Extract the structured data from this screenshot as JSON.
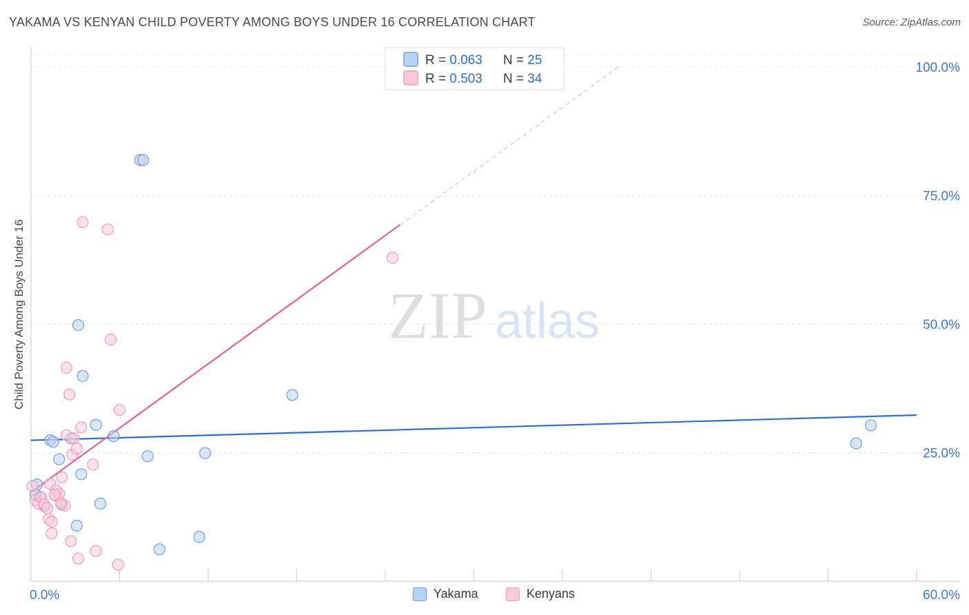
{
  "chart_data": {
    "type": "scatter",
    "title": "YAKAMA VS KENYAN CHILD POVERTY AMONG BOYS UNDER 16 CORRELATION CHART",
    "source": "Source: ZipAtlas.com",
    "xlabel": "",
    "ylabel": "Child Poverty Among Boys Under 16",
    "xlim": [
      0,
      60
    ],
    "ylim": [
      0,
      100
    ],
    "x_tick_labels": [
      "0.0%",
      "60.0%"
    ],
    "y_tick_labels": [
      "25.0%",
      "50.0%",
      "75.0%",
      "100.0%"
    ],
    "y_tick_values": [
      25,
      50,
      75,
      100
    ],
    "watermark": {
      "zip": "ZIP",
      "atlas": "atlas"
    },
    "legend": [
      {
        "r_label": "R = ",
        "r_value": "0.063",
        "n_label": "N = ",
        "n_value": "25"
      },
      {
        "r_label": "R = ",
        "r_value": "0.503",
        "n_label": "N = ",
        "n_value": "34"
      }
    ],
    "series": [
      {
        "name": "Yakama",
        "color": "#6f9fe0",
        "fill": "#b9d1f3",
        "line_color": "#2a6fcc",
        "trend": {
          "x0": 0,
          "y0": 27.4,
          "x1": 60,
          "y1": 32.3
        },
        "points": [
          [
            0.4,
            18.8
          ],
          [
            0.6,
            16.4
          ],
          [
            0.9,
            14.6
          ],
          [
            1.3,
            27.4
          ],
          [
            1.5,
            27.1
          ],
          [
            1.9,
            23.7
          ],
          [
            2.1,
            14.9
          ],
          [
            2.7,
            27.8
          ],
          [
            3.1,
            10.8
          ],
          [
            3.2,
            49.8
          ],
          [
            3.4,
            20.8
          ],
          [
            3.5,
            39.9
          ],
          [
            4.4,
            30.4
          ],
          [
            4.7,
            15.1
          ],
          [
            5.6,
            28.2
          ],
          [
            7.4,
            81.9
          ],
          [
            7.6,
            81.9
          ],
          [
            7.9,
            24.3
          ],
          [
            8.7,
            6.2
          ],
          [
            11.4,
            8.6
          ],
          [
            11.8,
            24.9
          ],
          [
            17.7,
            36.2
          ],
          [
            55.9,
            26.8
          ],
          [
            56.9,
            30.3
          ],
          [
            0.3,
            16.9
          ]
        ]
      },
      {
        "name": "Kenyans",
        "color": "#f29ab5",
        "fill": "#f9cbd9",
        "line_color": "#e0628c",
        "trend": {
          "x0": 0,
          "y0": 17.3,
          "x1": 25,
          "y1": 69.3
        },
        "trend_ext": {
          "x0": 25,
          "y0": 69.3,
          "x1": 39.8,
          "y1": 100
        },
        "points": [
          [
            0.1,
            18.5
          ],
          [
            0.3,
            15.8
          ],
          [
            0.5,
            15.1
          ],
          [
            0.7,
            16.3
          ],
          [
            0.9,
            15.0
          ],
          [
            1.1,
            14.2
          ],
          [
            1.2,
            12.1
          ],
          [
            1.3,
            18.9
          ],
          [
            1.4,
            11.6
          ],
          [
            1.4,
            9.3
          ],
          [
            1.7,
            16.6
          ],
          [
            1.7,
            17.7
          ],
          [
            1.9,
            17.0
          ],
          [
            2.1,
            20.2
          ],
          [
            2.3,
            14.7
          ],
          [
            2.4,
            28.4
          ],
          [
            2.4,
            41.5
          ],
          [
            2.6,
            36.3
          ],
          [
            2.7,
            7.8
          ],
          [
            2.8,
            24.6
          ],
          [
            2.9,
            27.8
          ],
          [
            3.1,
            25.8
          ],
          [
            3.2,
            4.4
          ],
          [
            3.4,
            29.9
          ],
          [
            3.5,
            69.8
          ],
          [
            4.2,
            22.7
          ],
          [
            4.4,
            5.9
          ],
          [
            5.2,
            68.4
          ],
          [
            5.4,
            47.0
          ],
          [
            5.9,
            3.2
          ],
          [
            6.0,
            33.3
          ],
          [
            24.5,
            62.9
          ],
          [
            2.0,
            15.2
          ],
          [
            1.6,
            16.8
          ]
        ]
      }
    ]
  }
}
